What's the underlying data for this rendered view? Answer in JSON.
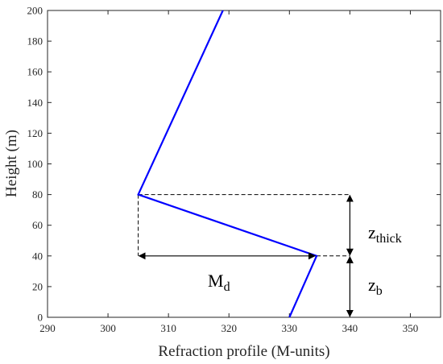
{
  "chart_data": {
    "type": "line",
    "xlabel": "Refraction profile (M-units)",
    "ylabel": "Height (m)",
    "xlim": [
      290,
      355
    ],
    "ylim": [
      0,
      200
    ],
    "xticks": [
      290,
      300,
      310,
      320,
      330,
      340,
      350
    ],
    "yticks": [
      0,
      20,
      40,
      60,
      80,
      100,
      120,
      140,
      160,
      180,
      200
    ],
    "grid": false,
    "series": [
      {
        "color": "#0000ff",
        "points": [
          {
            "x": 330,
            "y": 0
          },
          {
            "x": 334.5,
            "y": 40
          },
          {
            "x": 305,
            "y": 80
          },
          {
            "x": 319,
            "y": 200
          }
        ]
      }
    ],
    "annotations": {
      "md": {
        "main": "M",
        "sub": "d"
      },
      "zthick": {
        "main": "z",
        "sub": "thick"
      },
      "zb": {
        "main": "z",
        "sub": "b"
      }
    }
  }
}
